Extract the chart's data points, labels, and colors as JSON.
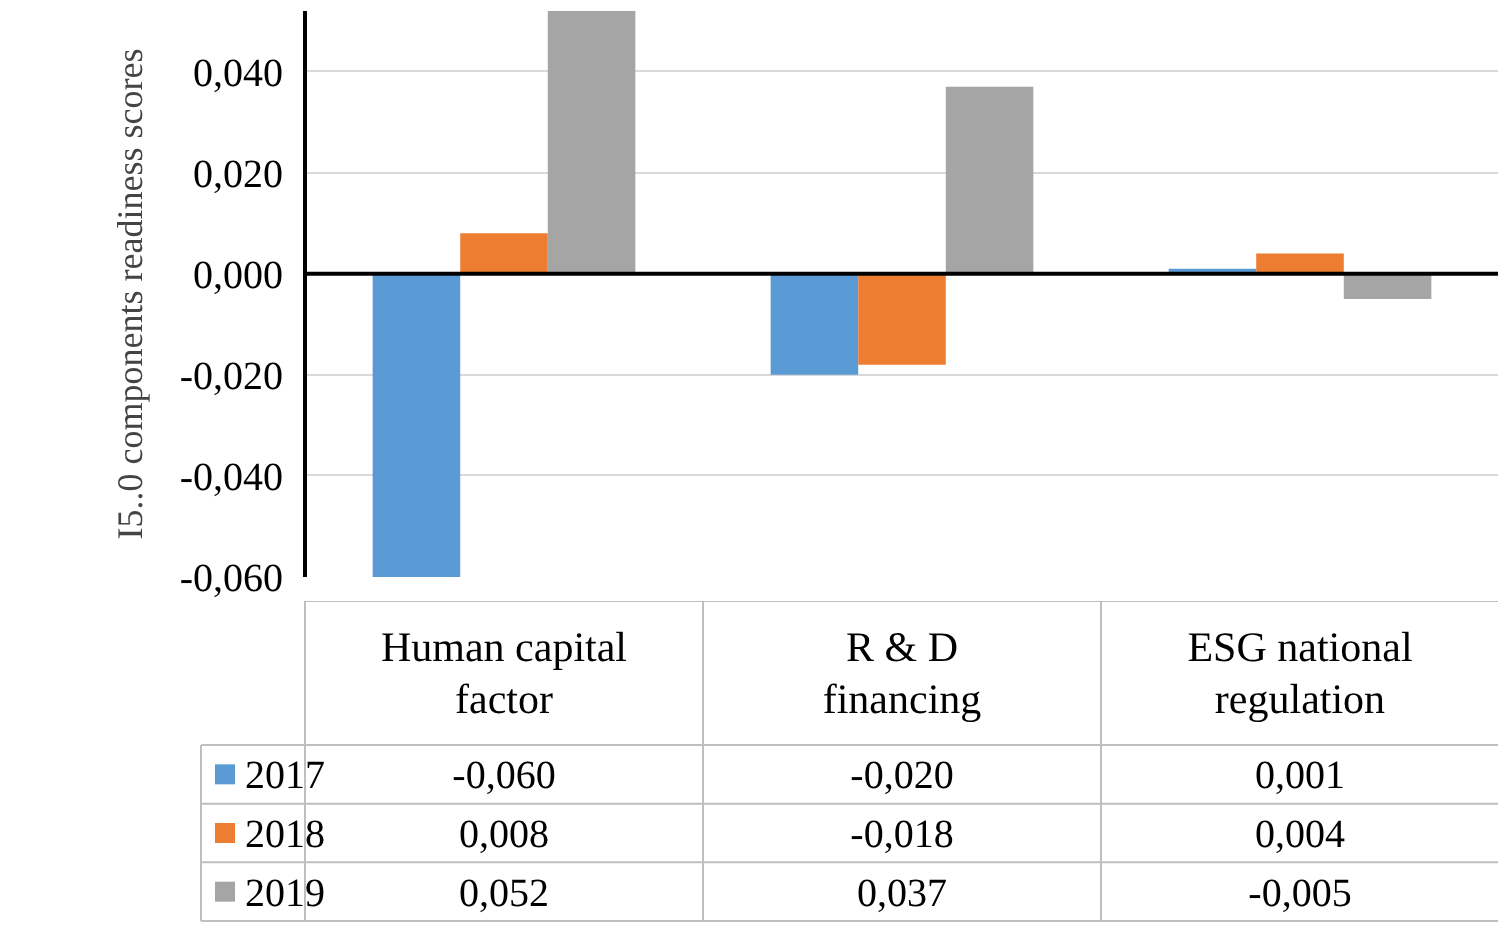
{
  "chart_data": {
    "type": "bar",
    "ylabel": "I5..0 components readiness scores",
    "categories": [
      "Human capital factor",
      "R & D financing",
      "ESG national regulation"
    ],
    "series": [
      {
        "name": "2017",
        "color": "#5b9bd5",
        "values": [
          -0.06,
          -0.02,
          0.001
        ],
        "value_labels": [
          "-0,060",
          "-0,020",
          "0,001"
        ]
      },
      {
        "name": "2018",
        "color": "#ed7d31",
        "values": [
          0.008,
          -0.018,
          0.004
        ],
        "value_labels": [
          "0,008",
          "-0,018",
          "0,004"
        ]
      },
      {
        "name": "2019",
        "color": "#a5a5a5",
        "values": [
          0.052,
          0.037,
          -0.005
        ],
        "value_labels": [
          "0,052",
          "0,037",
          "-0,005"
        ]
      }
    ],
    "ylim": [
      -0.06,
      0.052
    ],
    "yticks": [
      {
        "value": -0.06,
        "label": "-0,060"
      },
      {
        "value": -0.04,
        "label": "-0,040"
      },
      {
        "value": -0.02,
        "label": "-0,020"
      },
      {
        "value": 0,
        "label": "0,000"
      },
      {
        "value": 0.02,
        "label": "0,020"
      },
      {
        "value": 0.04,
        "label": "0,040"
      }
    ],
    "grid": "y",
    "legend": "bottom"
  }
}
